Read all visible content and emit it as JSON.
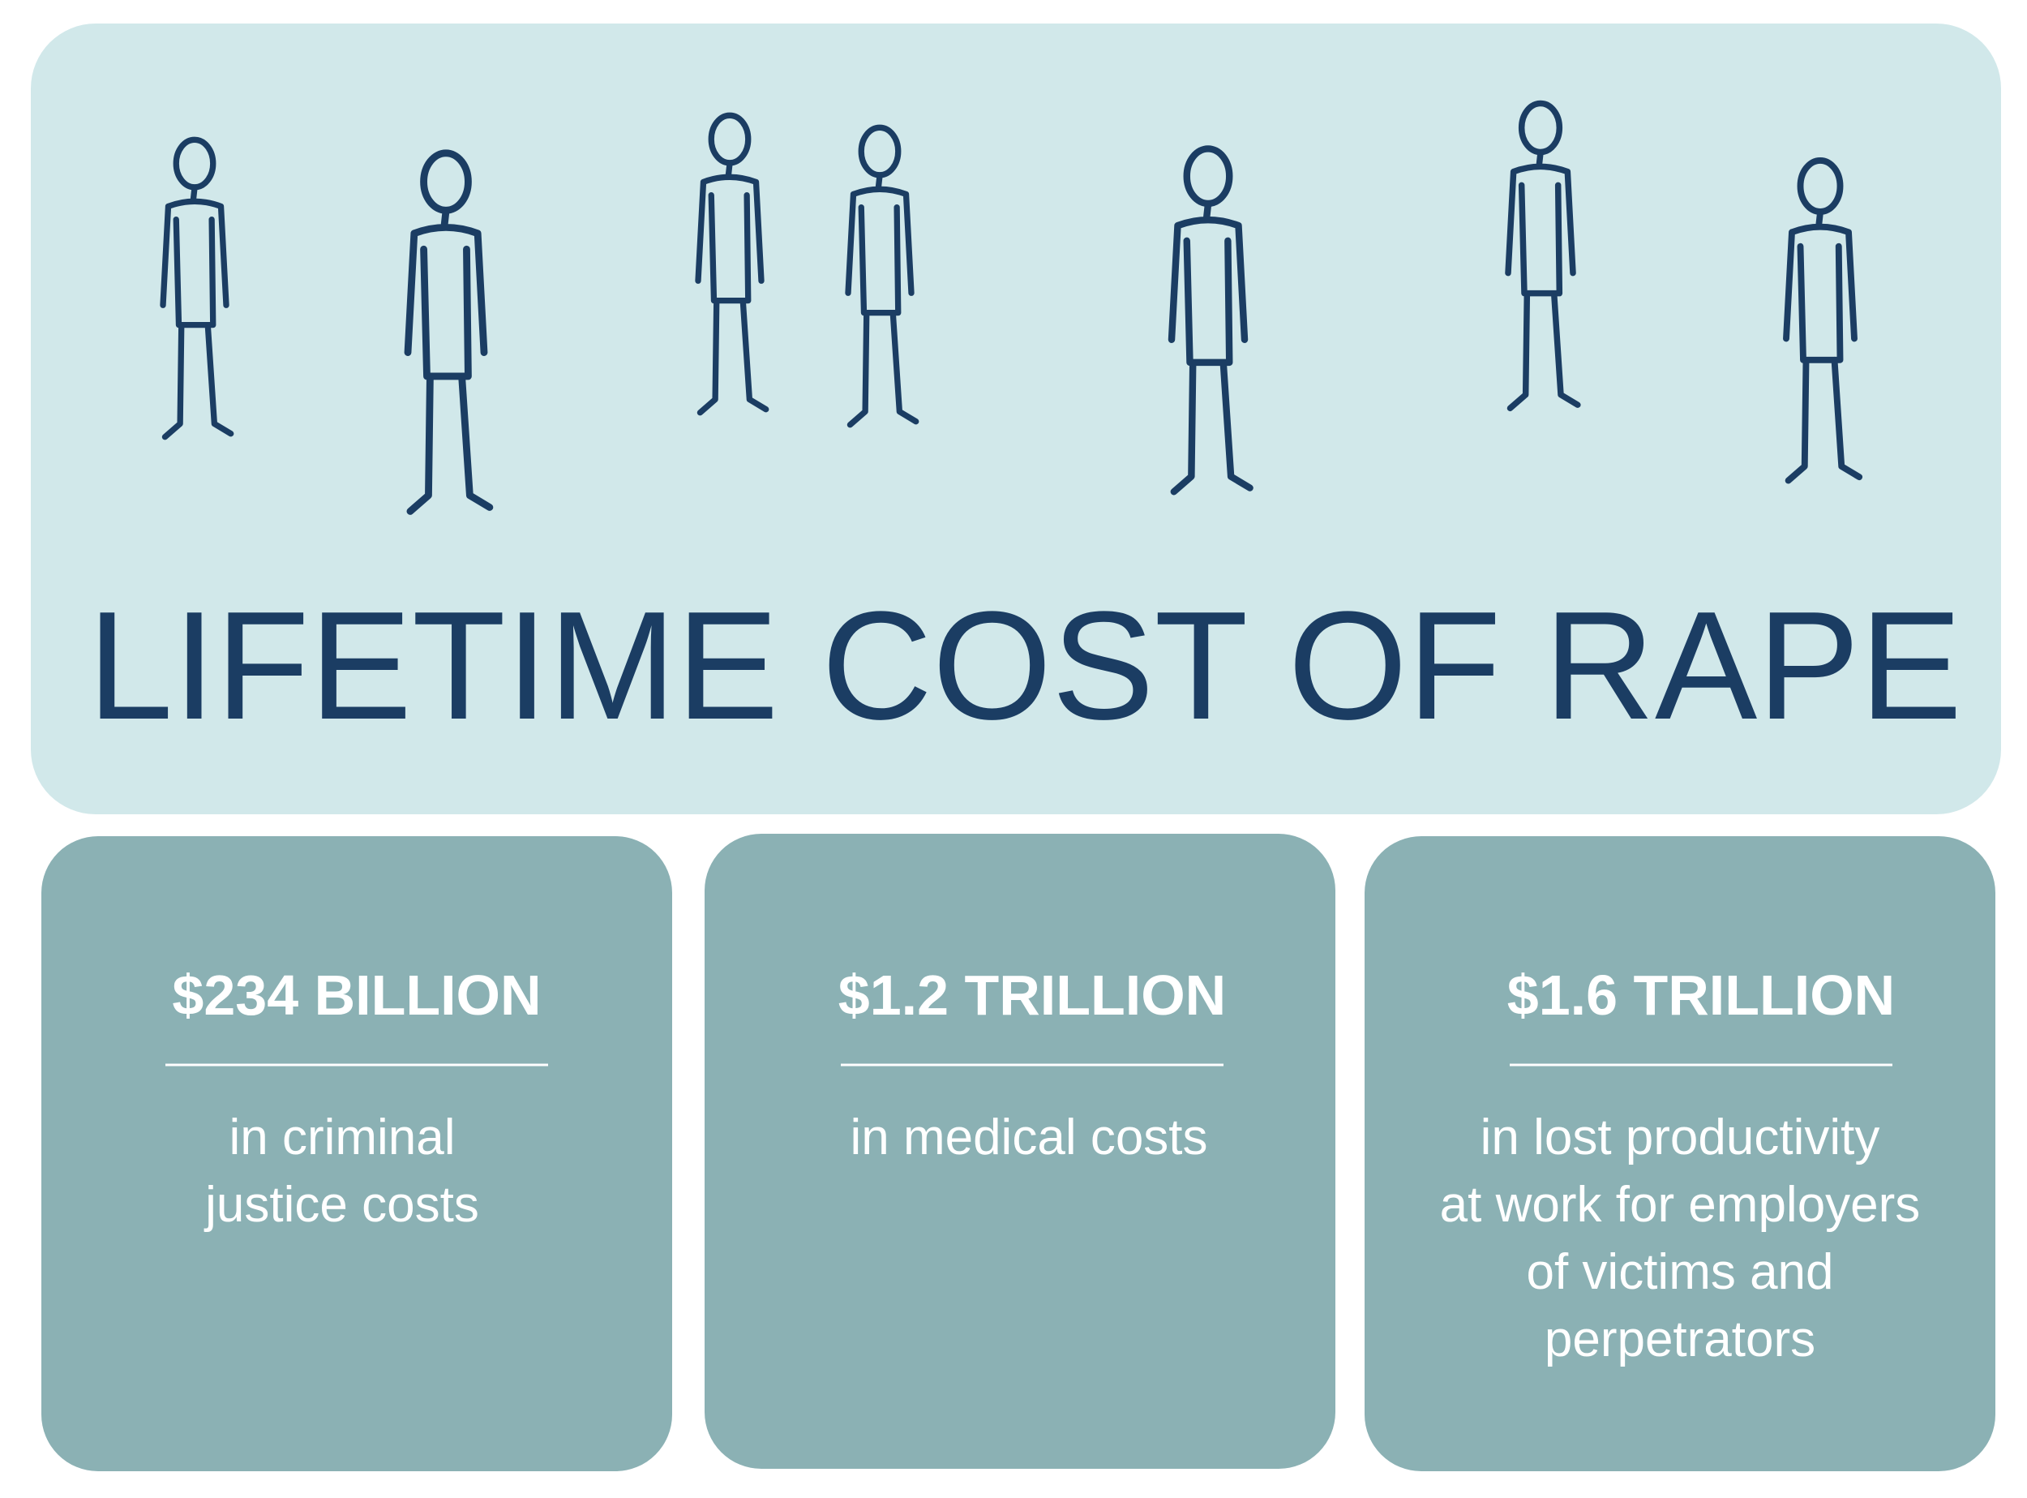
{
  "header": {
    "title": "LIFETIME COST OF RAPE"
  },
  "cards": [
    {
      "amount": "$234 BILLION",
      "description": [
        "in criminal",
        "justice costs"
      ]
    },
    {
      "amount": "$1.2 TRILLION",
      "description": [
        "in medical costs"
      ]
    },
    {
      "amount": "$1.6 TRILLION",
      "description": [
        "in lost productivity",
        "at work for employers",
        "of victims and",
        "perpetrators"
      ]
    }
  ]
}
